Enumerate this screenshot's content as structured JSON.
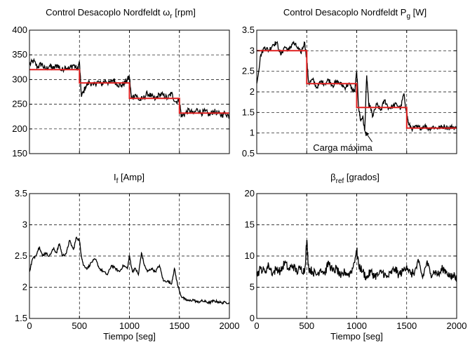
{
  "chart_data": [
    {
      "type": "line",
      "title": "Control Desacoplo Nordfeldt  ωr [rpm]",
      "xlim": [
        0,
        2000
      ],
      "ylim": [
        150,
        400
      ],
      "xticks": [
        0,
        500,
        1000,
        1500,
        2000
      ],
      "yticks": [
        150,
        200,
        250,
        300,
        350,
        400
      ],
      "ytick_labels": [
        "150",
        "200",
        "250",
        "300",
        "350",
        "400"
      ],
      "xlabel": "",
      "grid": true,
      "series": [
        {
          "color": "#000000",
          "kind": "noisy",
          "x": [
            0,
            40,
            80,
            120,
            160,
            200,
            240,
            280,
            320,
            360,
            400,
            440,
            480,
            500,
            520,
            560,
            600,
            640,
            680,
            720,
            760,
            800,
            840,
            880,
            920,
            960,
            1000,
            1020,
            1060,
            1100,
            1140,
            1180,
            1220,
            1260,
            1300,
            1340,
            1380,
            1420,
            1460,
            1500,
            1520,
            1560,
            1600,
            1640,
            1680,
            1720,
            1760,
            1800,
            1840,
            1880,
            1920,
            1960,
            2000
          ],
          "y": [
            330,
            338,
            325,
            332,
            320,
            328,
            322,
            330,
            318,
            326,
            322,
            330,
            320,
            335,
            265,
            285,
            295,
            288,
            296,
            290,
            298,
            292,
            300,
            290,
            288,
            295,
            305,
            262,
            270,
            258,
            262,
            272,
            266,
            260,
            270,
            268,
            262,
            272,
            255,
            258,
            225,
            232,
            238,
            230,
            240,
            232,
            236,
            228,
            236,
            232,
            228,
            232,
            225
          ],
          "noise": 6
        },
        {
          "color": "#e02020",
          "kind": "step",
          "x": [
            0,
            500,
            500,
            1000,
            1000,
            1500,
            1500,
            2000
          ],
          "y": [
            320,
            320,
            293,
            293,
            262,
            262,
            232,
            232
          ]
        }
      ]
    },
    {
      "type": "line",
      "title": "Control Desacoplo Nordfeldt  Pg [W]",
      "xlim": [
        0,
        2000
      ],
      "ylim": [
        0.5,
        3.5
      ],
      "xticks": [
        0,
        500,
        1000,
        1500,
        2000
      ],
      "yticks": [
        0.5,
        1,
        1.5,
        2,
        2.5,
        3,
        3.5
      ],
      "ytick_labels": [
        "0.5",
        "1",
        "1.5",
        "2",
        "2.5",
        "3",
        "3.5"
      ],
      "xlabel": "",
      "grid": true,
      "annotation": {
        "text": "Carga máxima",
        "x": 1000,
        "y": 0.65,
        "arrow_to": [
          1080,
          1.05
        ]
      },
      "series": [
        {
          "color": "#000000",
          "kind": "noisy",
          "x": [
            0,
            40,
            80,
            120,
            160,
            200,
            240,
            280,
            320,
            360,
            400,
            440,
            480,
            500,
            520,
            560,
            600,
            640,
            680,
            720,
            760,
            800,
            840,
            880,
            920,
            960,
            980,
            1000,
            1020,
            1040,
            1060,
            1080,
            1100,
            1120,
            1140,
            1160,
            1200,
            1240,
            1280,
            1320,
            1360,
            1400,
            1440,
            1470,
            1500,
            1520,
            1560,
            1600,
            1640,
            1680,
            1720,
            1760,
            1800,
            1840,
            1880,
            1920,
            1960,
            2000
          ],
          "y": [
            2.2,
            2.9,
            3.1,
            3.0,
            3.15,
            3.2,
            2.9,
            3.1,
            3.0,
            3.2,
            3.1,
            2.95,
            3.2,
            2.8,
            2.2,
            2.3,
            2.1,
            2.25,
            2.2,
            2.3,
            2.15,
            2.25,
            2.2,
            2.1,
            2.2,
            2.05,
            2.0,
            2.5,
            1.6,
            1.3,
            1.4,
            1.05,
            2.4,
            1.7,
            1.6,
            1.4,
            1.7,
            1.55,
            1.8,
            1.6,
            1.65,
            1.7,
            1.6,
            1.95,
            1.5,
            1.2,
            1.1,
            1.15,
            1.12,
            1.18,
            1.1,
            1.15,
            1.12,
            1.14,
            1.16,
            1.12,
            1.15,
            1.1
          ],
          "noise": 0.06
        },
        {
          "color": "#e02020",
          "kind": "step",
          "x": [
            0,
            500,
            500,
            1000,
            1000,
            1500,
            1500,
            2000
          ],
          "y": [
            3.0,
            3.0,
            2.2,
            2.2,
            1.62,
            1.62,
            1.12,
            1.12
          ]
        }
      ]
    },
    {
      "type": "line",
      "title": "If [Amp]",
      "xlim": [
        0,
        2000
      ],
      "ylim": [
        1.5,
        3.5
      ],
      "xticks": [
        0,
        500,
        1000,
        1500,
        2000
      ],
      "xtick_labels": [
        "0",
        "500",
        "1000",
        "1500",
        "2000"
      ],
      "yticks": [
        1.5,
        2,
        2.5,
        3,
        3.5
      ],
      "ytick_labels": [
        "1.5",
        "2",
        "2.5",
        "3",
        "3.5"
      ],
      "xlabel": "Tiempo [seg]",
      "grid": true,
      "series": [
        {
          "color": "#000000",
          "kind": "noisy",
          "x": [
            0,
            30,
            60,
            100,
            130,
            160,
            200,
            240,
            270,
            300,
            330,
            370,
            400,
            440,
            470,
            500,
            520,
            540,
            580,
            620,
            660,
            700,
            740,
            780,
            820,
            860,
            900,
            940,
            980,
            1000,
            1030,
            1060,
            1090,
            1120,
            1150,
            1180,
            1220,
            1260,
            1300,
            1340,
            1380,
            1420,
            1450,
            1480,
            1520,
            1560,
            1600,
            1640,
            1680,
            1720,
            1760,
            1800,
            1840,
            1880,
            1920,
            1960,
            2000
          ],
          "y": [
            2.25,
            2.45,
            2.5,
            2.65,
            2.5,
            2.55,
            2.5,
            2.62,
            2.55,
            2.7,
            2.5,
            2.55,
            2.75,
            2.6,
            2.8,
            2.75,
            2.5,
            2.35,
            2.3,
            2.4,
            2.45,
            2.3,
            2.25,
            2.2,
            2.35,
            2.3,
            2.25,
            2.35,
            2.3,
            2.5,
            2.25,
            2.3,
            2.2,
            2.55,
            2.35,
            2.25,
            2.3,
            2.25,
            2.35,
            2.1,
            2.1,
            2.05,
            2.3,
            2.05,
            1.85,
            1.8,
            1.78,
            1.8,
            1.76,
            1.78,
            1.77,
            1.75,
            1.78,
            1.77,
            1.75,
            1.76,
            1.75
          ],
          "noise": 0.02
        }
      ]
    },
    {
      "type": "line",
      "title": "βref [grados]",
      "xlim": [
        0,
        2000
      ],
      "ylim": [
        0,
        20
      ],
      "xticks": [
        0,
        500,
        1000,
        1500,
        2000
      ],
      "xtick_labels": [
        "0",
        "500",
        "1000",
        "1500",
        "2000"
      ],
      "yticks": [
        0,
        5,
        10,
        15,
        20
      ],
      "ytick_labels": [
        "0",
        "5",
        "10",
        "15",
        "20"
      ],
      "xlabel": "Tiempo [seg]",
      "grid": true,
      "series": [
        {
          "color": "#000000",
          "kind": "noisy",
          "x": [
            0,
            40,
            80,
            120,
            160,
            200,
            240,
            280,
            320,
            360,
            400,
            440,
            480,
            500,
            520,
            560,
            600,
            640,
            680,
            720,
            760,
            800,
            840,
            880,
            920,
            960,
            1000,
            1020,
            1060,
            1100,
            1140,
            1180,
            1220,
            1260,
            1300,
            1340,
            1380,
            1420,
            1460,
            1500,
            1540,
            1580,
            1620,
            1660,
            1700,
            1740,
            1780,
            1820,
            1860,
            1900,
            1940,
            1980,
            2000
          ],
          "y": [
            7,
            8,
            7.5,
            8.5,
            7.2,
            8,
            7.5,
            9,
            7.8,
            8.5,
            7.5,
            8,
            7.6,
            12.5,
            8,
            7.5,
            7,
            8,
            7.2,
            9,
            7.5,
            8,
            6.5,
            7.5,
            7,
            8,
            11,
            8.5,
            7.5,
            6.5,
            7.5,
            6.8,
            7,
            7.5,
            6.5,
            7.2,
            8,
            7,
            7.5,
            8.5,
            7,
            7.5,
            9,
            6.5,
            9,
            7.2,
            7.5,
            7,
            8,
            7.5,
            6.5,
            7,
            6.2
          ],
          "noise": 0.7
        }
      ]
    }
  ]
}
